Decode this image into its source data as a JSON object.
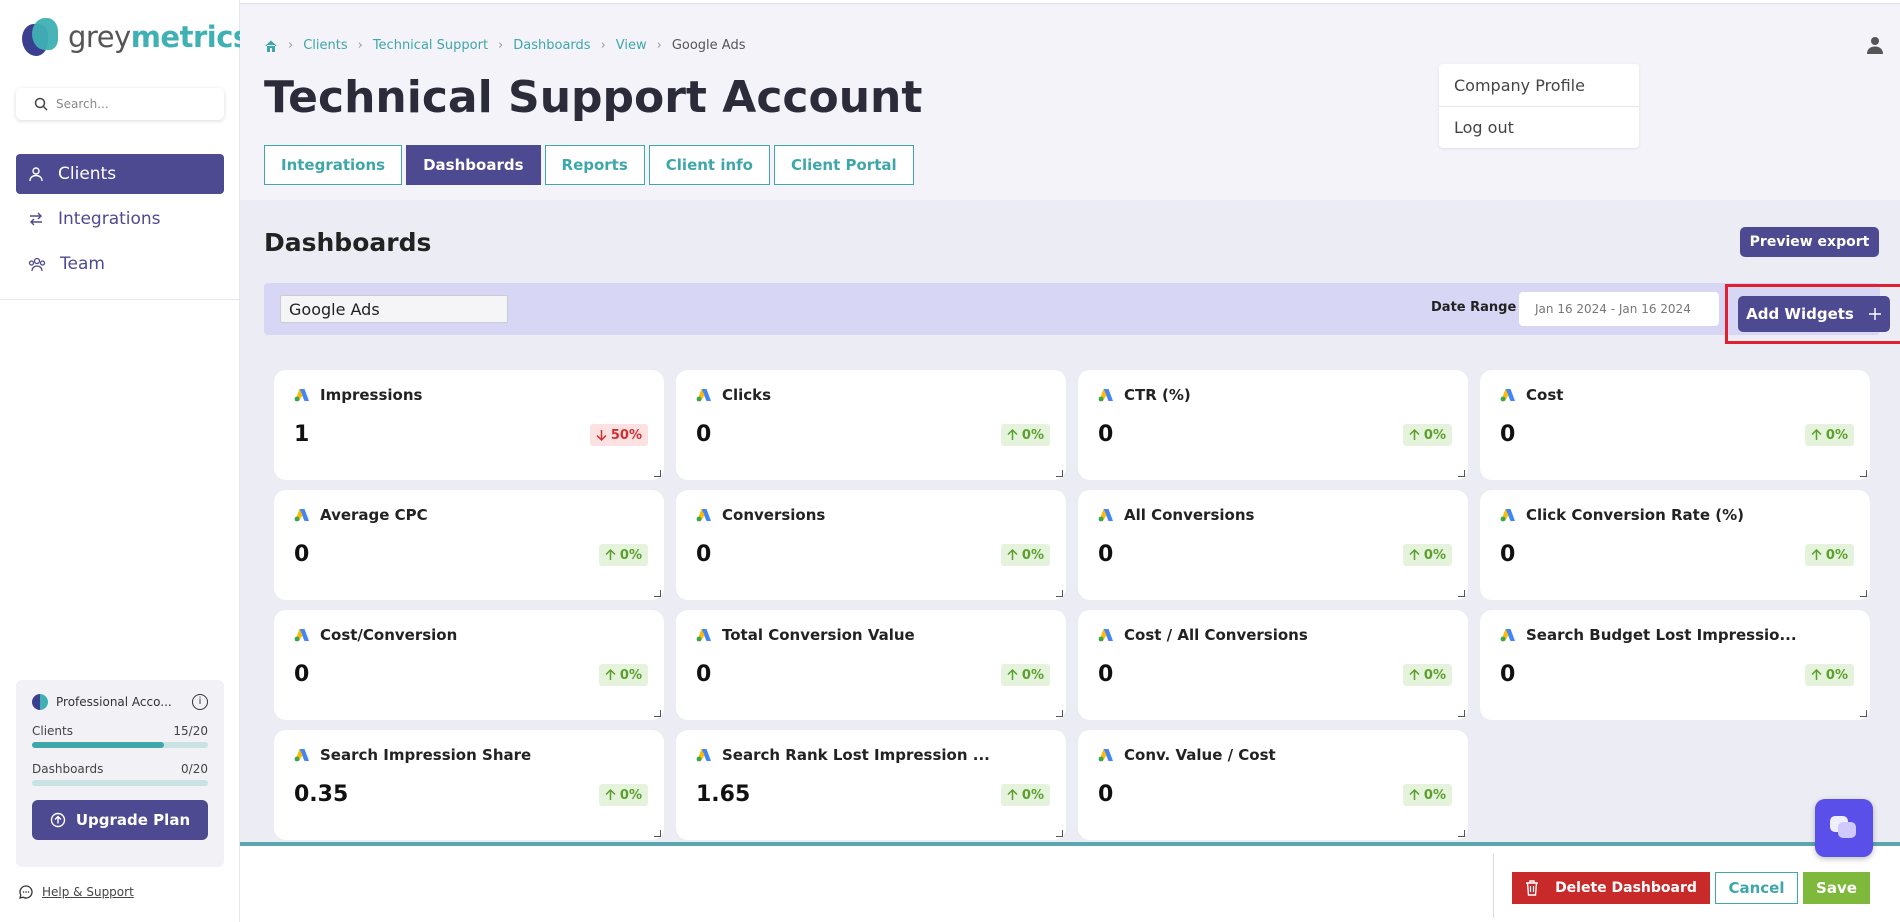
{
  "brand": {
    "part1": "grey",
    "part2": "metrics"
  },
  "search": {
    "placeholder": "Search..."
  },
  "nav": [
    {
      "label": "Clients",
      "icon": "user-icon"
    },
    {
      "label": "Integrations",
      "icon": "arrows-icon"
    },
    {
      "label": "Team",
      "icon": "team-icon"
    }
  ],
  "plan": {
    "name": "Professional Acco...",
    "clients_label": "Clients",
    "clients_value": "15/20",
    "clients_fraction": 0.75,
    "dashboards_label": "Dashboards",
    "dashboards_value": "0/20",
    "dashboards_fraction": 0.0,
    "upgrade_label": "Upgrade Plan"
  },
  "help": {
    "label": "Help & Support"
  },
  "breadcrumbs": [
    "Clients",
    "Technical Support",
    "Dashboards",
    "View",
    "Google Ads"
  ],
  "page_title": "Technical Support Account",
  "tabs": [
    "Integrations",
    "Dashboards",
    "Reports",
    "Client info",
    "Client Portal"
  ],
  "active_tab": "Dashboards",
  "user_menu": [
    "Company Profile",
    "Log out"
  ],
  "dashboard": {
    "section_title": "Dashboards",
    "preview_label": "Preview export",
    "name": "Google Ads",
    "date_label": "Date Range",
    "date_value": "Jan 16 2024 - Jan 16 2024",
    "add_widgets_label": "Add Widgets"
  },
  "widgets": [
    {
      "title": "Impressions",
      "value": "1",
      "change": "50%",
      "dir": "down"
    },
    {
      "title": "Clicks",
      "value": "0",
      "change": "0%",
      "dir": "up"
    },
    {
      "title": "CTR (%)",
      "value": "0",
      "change": "0%",
      "dir": "up"
    },
    {
      "title": "Cost",
      "value": "0",
      "change": "0%",
      "dir": "up"
    },
    {
      "title": "Average CPC",
      "value": "0",
      "change": "0%",
      "dir": "up"
    },
    {
      "title": "Conversions",
      "value": "0",
      "change": "0%",
      "dir": "up"
    },
    {
      "title": "All Conversions",
      "value": "0",
      "change": "0%",
      "dir": "up"
    },
    {
      "title": "Click Conversion Rate (%)",
      "value": "0",
      "change": "0%",
      "dir": "up"
    },
    {
      "title": "Cost/Conversion",
      "value": "0",
      "change": "0%",
      "dir": "up"
    },
    {
      "title": "Total Conversion Value",
      "value": "0",
      "change": "0%",
      "dir": "up"
    },
    {
      "title": "Cost / All Conversions",
      "value": "0",
      "change": "0%",
      "dir": "up"
    },
    {
      "title": "Search Budget Lost Impressio...",
      "value": "0",
      "change": "0%",
      "dir": "up"
    },
    {
      "title": "Search Impression Share",
      "value": "0.35",
      "change": "0%",
      "dir": "up"
    },
    {
      "title": "Search Rank Lost Impression ...",
      "value": "1.65",
      "change": "0%",
      "dir": "up"
    },
    {
      "title": "Conv. Value / Cost",
      "value": "0",
      "change": "0%",
      "dir": "up"
    }
  ],
  "footer": {
    "delete_label": "Delete Dashboard",
    "cancel_label": "Cancel",
    "save_label": "Save"
  },
  "colors": {
    "primary": "#4e4a91",
    "teal": "#3fa6a9",
    "danger": "#c82a2a",
    "success": "#7fb93c",
    "highlight": "#e02030"
  }
}
